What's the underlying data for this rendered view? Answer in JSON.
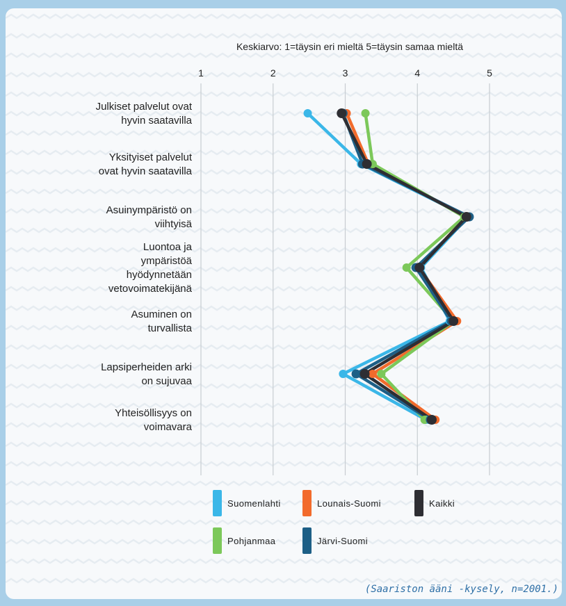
{
  "chart_data": {
    "type": "line",
    "title": "Keskiarvo: 1=täysin eri mieltä 5=täysin samaa mieltä",
    "orientation": "horizontal-values",
    "xlim": [
      1,
      5
    ],
    "ticks": [
      "1",
      "2",
      "3",
      "4",
      "5"
    ],
    "grid": true,
    "legend_position": "bottom",
    "categories": [
      [
        "Julkiset palvelut ovat",
        "hyvin saatavilla"
      ],
      [
        "Yksityiset palvelut",
        "ovat hyvin saatavilla"
      ],
      [
        "Asuinympäristö on",
        "viihtyisä"
      ],
      [
        "Luontoa ja",
        "ympäristöä",
        "hyödynnetään",
        "vetovoimatekijänä"
      ],
      [
        "Asuminen on",
        "turvallista"
      ],
      [
        "Lapsiperheiden arki",
        "on sujuvaa"
      ],
      [
        "Yhteisöllisyys on",
        "voimavara"
      ]
    ],
    "series": [
      {
        "name": "Suomenlahti",
        "color": "#3bb7e8",
        "values": [
          2.48,
          3.22,
          4.7,
          4.05,
          4.45,
          2.97,
          4.12
        ]
      },
      {
        "name": "Lounais-Suomi",
        "color": "#f26b2c",
        "values": [
          3.02,
          3.32,
          4.68,
          4.02,
          4.55,
          3.38,
          4.25
        ]
      },
      {
        "name": "Pohjanmaa",
        "color": "#7cc85a",
        "values": [
          3.28,
          3.38,
          4.65,
          3.85,
          4.5,
          3.5,
          4.1
        ]
      },
      {
        "name": "Järvi-Suomi",
        "color": "#1d5f86",
        "values": [
          2.97,
          3.24,
          4.72,
          3.98,
          4.47,
          3.15,
          4.18
        ]
      },
      {
        "name": "Kaikki",
        "color": "#2e2e33",
        "values": [
          2.95,
          3.3,
          4.68,
          4.03,
          4.5,
          3.27,
          4.2
        ]
      }
    ]
  },
  "source_note": "(Saariston ääni -kysely, n=2001.)"
}
